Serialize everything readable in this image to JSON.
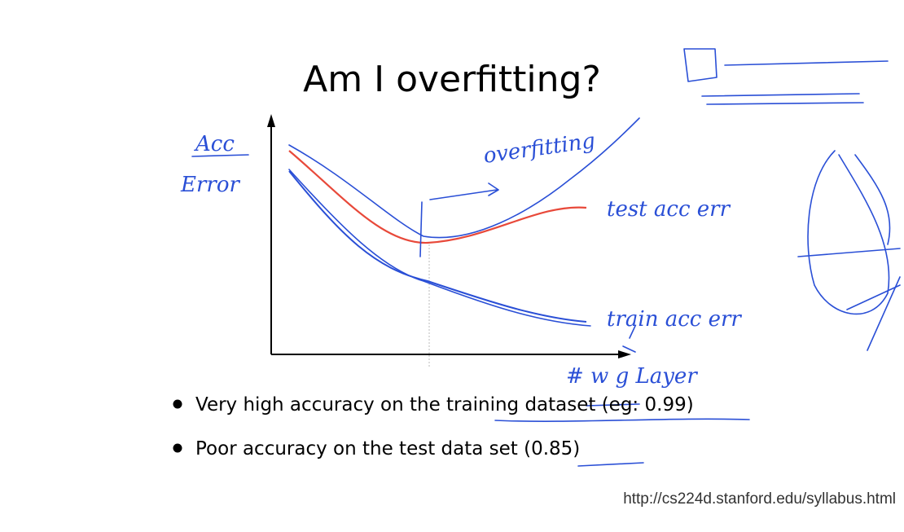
{
  "slide": {
    "title": "Am I overfitting?",
    "bullets": [
      "Very high accuracy on the training dataset (eg: 0.99)",
      "Poor accuracy on the test data set (0.85)"
    ],
    "source": "http://cs224d.stanford.edu/syllabus.html",
    "annotations": {
      "y_axis_top": "Acc",
      "y_axis_bottom": "Error",
      "region": "overfitting",
      "test_curve": "test acc err",
      "train_curve": "train acc err",
      "x_axis": "# w g Layer"
    }
  }
}
